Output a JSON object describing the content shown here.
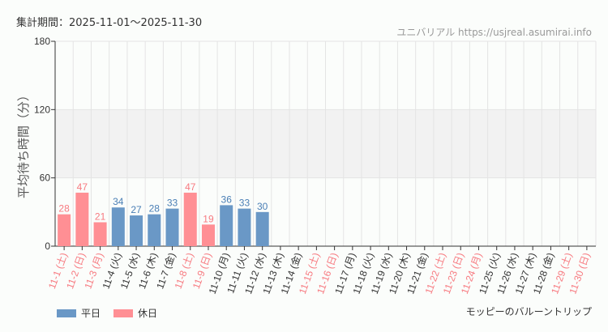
{
  "header": {
    "period": "集計期間：2025-11-01〜2025-11-30",
    "source": "ユニバリアル  https://usjreal.asumirai.info"
  },
  "footer_note": "モッピーのバルーントリップ",
  "colors": {
    "weekday": "#6a98c6",
    "holiday": "#ff8f94",
    "weekday_text": "#4a7fb5",
    "holiday_text": "#f77a80",
    "band": "#f2f2f2"
  },
  "chart_data": {
    "type": "bar",
    "ylabel": "平均待ち時間（分）",
    "ylim": [
      0,
      180
    ],
    "yticks": [
      0,
      60,
      120,
      180
    ],
    "shaded_band": [
      60,
      120
    ],
    "grid": true,
    "legend_position": "bottom-left",
    "legend": [
      {
        "name": "平日",
        "color": "#6a98c6"
      },
      {
        "name": "休日",
        "color": "#ff8f94"
      }
    ],
    "categories": [
      "11-1 (土)",
      "11-2 (日)",
      "11-3 (月)",
      "11-4 (火)",
      "11-5 (水)",
      "11-6 (木)",
      "11-7 (金)",
      "11-8 (土)",
      "11-9 (日)",
      "11-10 (月)",
      "11-11 (火)",
      "11-12 (水)",
      "11-13 (木)",
      "11-14 (金)",
      "11-15 (土)",
      "11-16 (日)",
      "11-17 (月)",
      "11-18 (火)",
      "11-19 (水)",
      "11-20 (木)",
      "11-21 (金)",
      "11-22 (土)",
      "11-23 (日)",
      "11-24 (月)",
      "11-25 (火)",
      "11-26 (水)",
      "11-27 (木)",
      "11-28 (金)",
      "11-29 (土)",
      "11-30 (日)"
    ],
    "holiday": [
      true,
      true,
      true,
      false,
      false,
      false,
      false,
      true,
      true,
      false,
      false,
      false,
      false,
      false,
      true,
      true,
      false,
      false,
      false,
      false,
      false,
      true,
      true,
      true,
      false,
      false,
      false,
      false,
      true,
      true
    ],
    "values": [
      28,
      47,
      21,
      34,
      27,
      28,
      33,
      47,
      19,
      36,
      33,
      30,
      null,
      null,
      null,
      null,
      null,
      null,
      null,
      null,
      null,
      null,
      null,
      null,
      null,
      null,
      null,
      null,
      null,
      null
    ]
  }
}
